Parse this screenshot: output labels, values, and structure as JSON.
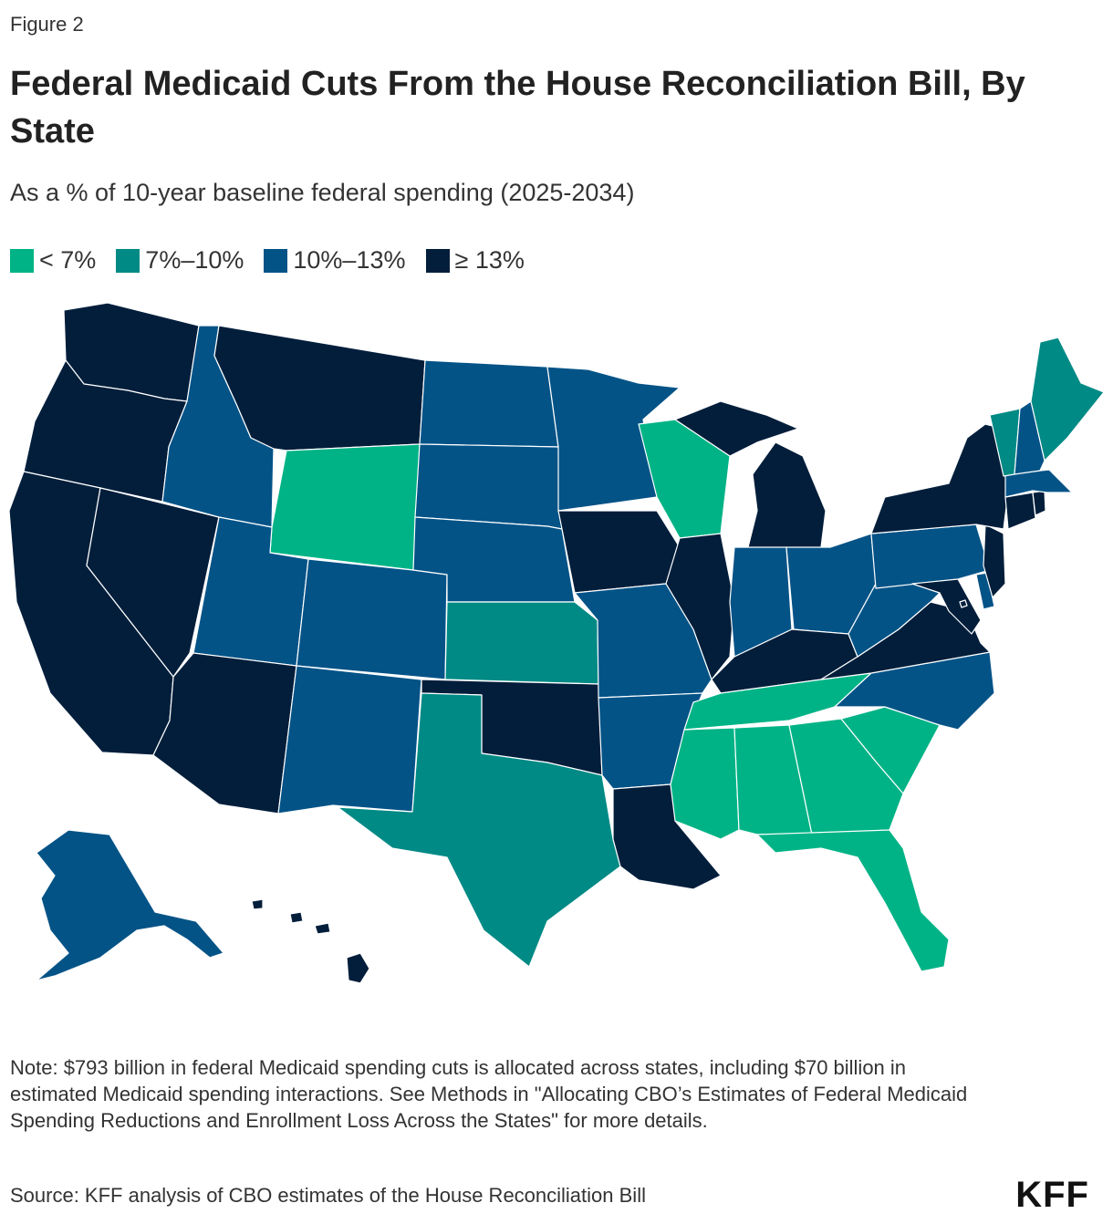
{
  "figure_label": "Figure 2",
  "title": "Federal Medicaid Cuts From the House Reconciliation Bill, By State",
  "subtitle": "As a % of 10-year baseline federal spending (2025-2034)",
  "legend": [
    {
      "label": "< 7%",
      "color": "#00b386"
    },
    {
      "label": "7%–10%",
      "color": "#008a85"
    },
    {
      "label": "10%–13%",
      "color": "#045387"
    },
    {
      "label": "≥ 13%",
      "color": "#021e3b"
    }
  ],
  "categories": {
    "WA": 3,
    "OR": 3,
    "CA": 3,
    "NV": 3,
    "ID": 2,
    "MT": 3,
    "WY": 0,
    "UT": 2,
    "AZ": 3,
    "CO": 2,
    "NM": 2,
    "ND": 2,
    "SD": 2,
    "NE": 2,
    "KS": 1,
    "OK": 3,
    "TX": 1,
    "MN": 2,
    "IA": 3,
    "MO": 2,
    "AR": 2,
    "LA": 3,
    "WI": 0,
    "IL": 3,
    "MI": 3,
    "IN": 2,
    "OH": 2,
    "KY": 3,
    "TN": 0,
    "MS": 0,
    "AL": 0,
    "GA": 0,
    "FL": 0,
    "SC": 0,
    "NC": 2,
    "VA": 3,
    "WV": 2,
    "MD": 3,
    "DE": 2,
    "PA": 2,
    "NJ": 3,
    "NY": 3,
    "CT": 3,
    "RI": 3,
    "MA": 2,
    "VT": 1,
    "NH": 2,
    "ME": 1,
    "AK": 2,
    "HI": 3,
    "DC": 3
  },
  "note": "Note: $793 billion in federal Medicaid spending cuts is allocated across states, including $70 billion in estimated Medicaid spending interactions. See Methods in \"Allocating CBO’s Estimates of Federal Medicaid Spending Reductions and Enrollment Loss Across the States\" for more details.",
  "source": "Source: KFF analysis of CBO estimates of the House Reconciliation Bill",
  "logo": "KFF"
}
